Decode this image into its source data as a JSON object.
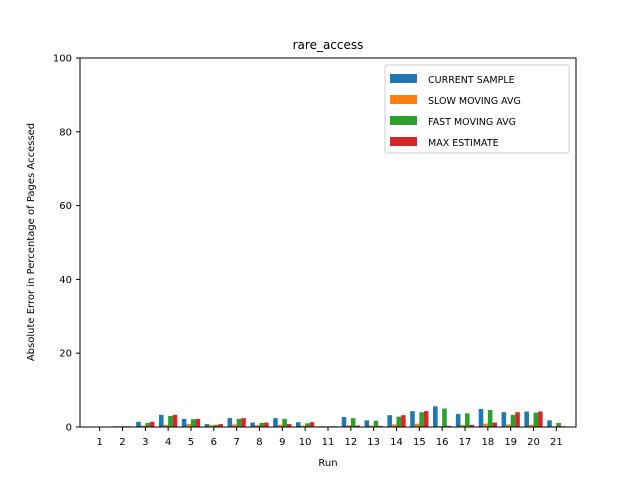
{
  "chart_data": {
    "type": "bar",
    "title": "rare_access",
    "xlabel": "Run",
    "ylabel": "Absolute Error in Percentage of Pages Accessed",
    "ylim": [
      0,
      100
    ],
    "yticks": [
      0,
      20,
      40,
      60,
      80,
      100
    ],
    "categories": [
      "1",
      "2",
      "3",
      "4",
      "5",
      "6",
      "7",
      "8",
      "9",
      "10",
      "11",
      "12",
      "13",
      "14",
      "15",
      "16",
      "17",
      "18",
      "19",
      "20",
      "21"
    ],
    "legend_position": "top-right",
    "series": [
      {
        "name": "CURRENT SAMPLE",
        "color": "#1f77b4",
        "values": [
          0,
          0.2,
          1.4,
          3.3,
          2.2,
          0.8,
          2.4,
          1.2,
          2.4,
          1.3,
          0.2,
          2.7,
          1.8,
          3.2,
          4.3,
          5.6,
          3.5,
          4.9,
          4.0,
          4.2,
          1.8
        ]
      },
      {
        "name": "SLOW MOVING AVG",
        "color": "#ff7f0e",
        "values": [
          0,
          0.2,
          0.4,
          0.6,
          0.8,
          0.5,
          0.7,
          0.5,
          0.6,
          0.4,
          0.2,
          0.5,
          0.4,
          0.7,
          0.9,
          0.2,
          0.6,
          0.9,
          0.7,
          0.6,
          0.2
        ]
      },
      {
        "name": "FAST MOVING AVG",
        "color": "#2ca02c",
        "values": [
          0,
          0.2,
          1.1,
          3.0,
          2.1,
          0.6,
          2.2,
          1.1,
          2.2,
          1.0,
          0.2,
          2.4,
          1.7,
          2.8,
          4.0,
          5.0,
          3.7,
          4.6,
          3.3,
          3.9,
          1.1
        ]
      },
      {
        "name": "MAX ESTIMATE",
        "color": "#d62728",
        "values": [
          0,
          0.2,
          1.4,
          3.3,
          2.2,
          0.8,
          2.4,
          1.2,
          0.8,
          1.3,
          0.2,
          0.4,
          0.3,
          3.2,
          4.3,
          0.3,
          0.6,
          1.2,
          4.0,
          4.2,
          0.2
        ]
      }
    ]
  }
}
